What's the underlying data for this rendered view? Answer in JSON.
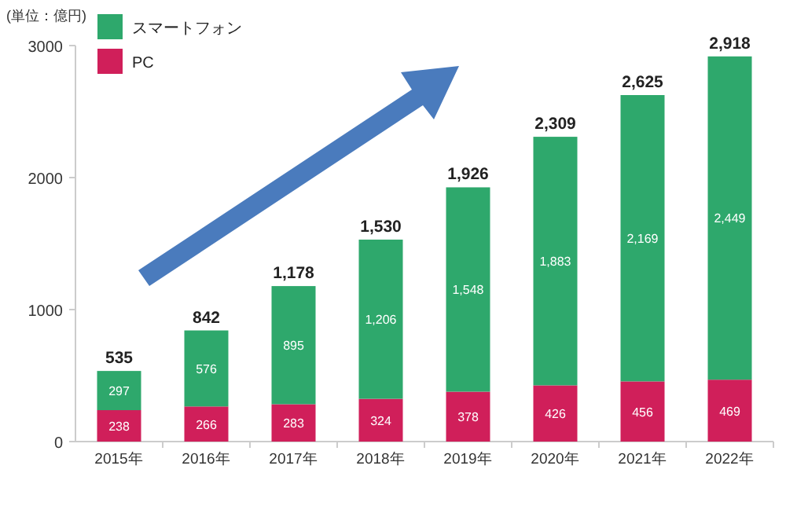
{
  "chart_data": {
    "type": "bar",
    "stacked": true,
    "ylabel": "(単位：億円)",
    "categories": [
      "2015年",
      "2016年",
      "2017年",
      "2018年",
      "2019年",
      "2020年",
      "2021年",
      "2022年"
    ],
    "series": [
      {
        "name": "PC",
        "color": "#d01f5a",
        "values": [
          238,
          266,
          283,
          324,
          378,
          426,
          456,
          469
        ],
        "value_labels": [
          "238",
          "266",
          "283",
          "324",
          "378",
          "426",
          "456",
          "469"
        ]
      },
      {
        "name": "スマートフォン",
        "color": "#2ea86c",
        "values": [
          297,
          576,
          895,
          1206,
          1548,
          1883,
          2169,
          2449
        ],
        "value_labels": [
          "297",
          "576",
          "895",
          "1,206",
          "1,548",
          "1,883",
          "2,169",
          "2,449"
        ]
      }
    ],
    "totals": [
      "535",
      "842",
      "1,178",
      "1,530",
      "1,926",
      "2,309",
      "2,625",
      "2,918"
    ],
    "ylim": [
      0,
      3000
    ],
    "yticks": [
      0,
      1000,
      2000,
      3000
    ],
    "grid": false,
    "legend": "top left"
  }
}
